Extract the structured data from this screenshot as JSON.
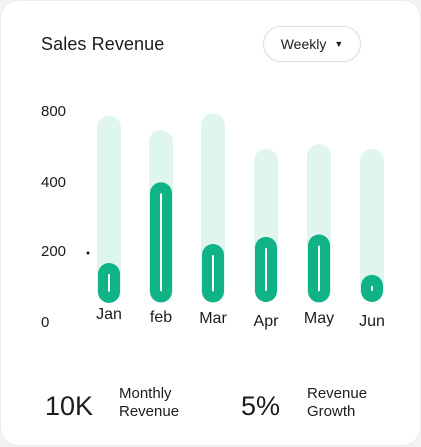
{
  "header": {
    "title": "Sales Revenue",
    "period_select": {
      "value": "Weekly"
    }
  },
  "colors": {
    "bar": "#10b385",
    "track": "#e1f5ef",
    "text": "#1c1c1c"
  },
  "chart_data": {
    "type": "bar",
    "categories": [
      "Jan",
      "feb",
      "Mar",
      "Apr",
      "May",
      "Jun"
    ],
    "yticks": [
      {
        "label": "800",
        "value": 800
      },
      {
        "label": "400",
        "value": 400
      },
      {
        "label": "200",
        "value": 200
      },
      {
        "label": "0",
        "value": 0
      }
    ],
    "series": [
      {
        "values": [
          160,
          500,
          240,
          270,
          280,
          110
        ],
        "floor": [
          20,
          15,
          15,
          10,
          15,
          10
        ]
      },
      {
        "values": [
          780,
          720,
          790,
          640,
          660,
          640
        ]
      }
    ],
    "ylim": [
      0,
      800
    ],
    "grid": false,
    "legend": "none"
  },
  "stats": [
    {
      "value": "10K",
      "label_line1": "Monthly",
      "label_line2": "Revenue"
    },
    {
      "value": "5%",
      "label_line1": "Revenue",
      "label_line2": "Growth"
    }
  ]
}
